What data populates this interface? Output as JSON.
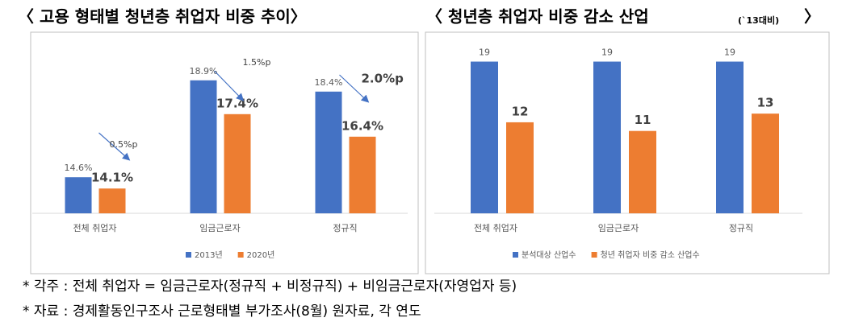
{
  "chart_data": [
    {
      "type": "bar",
      "title": "〈 고용 형태별 청년층 취업자 비중 추이〉",
      "categories": [
        "전체 취업자",
        "임금근로자",
        "정규직"
      ],
      "series": [
        {
          "name": "2013년",
          "color": "#4472c4",
          "values": [
            14.6,
            18.9,
            18.4
          ],
          "value_labels": [
            "14.6%",
            "18.9%",
            "18.4%"
          ]
        },
        {
          "name": "2020년",
          "color": "#ed7d31",
          "values": [
            14.1,
            17.4,
            16.4
          ],
          "value_labels": [
            "14.1%",
            "17.4%",
            "16.4%"
          ]
        }
      ],
      "annotations": [
        "0.5%p",
        "1.5%p",
        "2.0%p"
      ],
      "ylim": [
        13,
        20.5
      ],
      "legend": "bottom"
    },
    {
      "type": "bar",
      "title": "〈 청년층 취업자 비중 감소 산업",
      "title_note": "(`13대비)",
      "title_end": "〉",
      "categories": [
        "전체 취업자",
        "임금근로자",
        "정규직"
      ],
      "series": [
        {
          "name": "분석대상 산업수",
          "color": "#4472c4",
          "values": [
            19,
            19,
            19
          ]
        },
        {
          "name": "청년 취업자 비중 감소 산업수",
          "color": "#ed7d31",
          "values": [
            12,
            11,
            13
          ]
        }
      ],
      "ylim": [
        1.5,
        21
      ],
      "legend": "bottom"
    }
  ],
  "notes": [
    "* 각주 : 전체 취업자 = 임금근로자(정규직 + 비정규직) + 비임금근로자(자영업자 등)",
    "* 자료 : 경제활동인구조사 근로형태별 부가조사(8월) 원자료, 각 연도"
  ]
}
